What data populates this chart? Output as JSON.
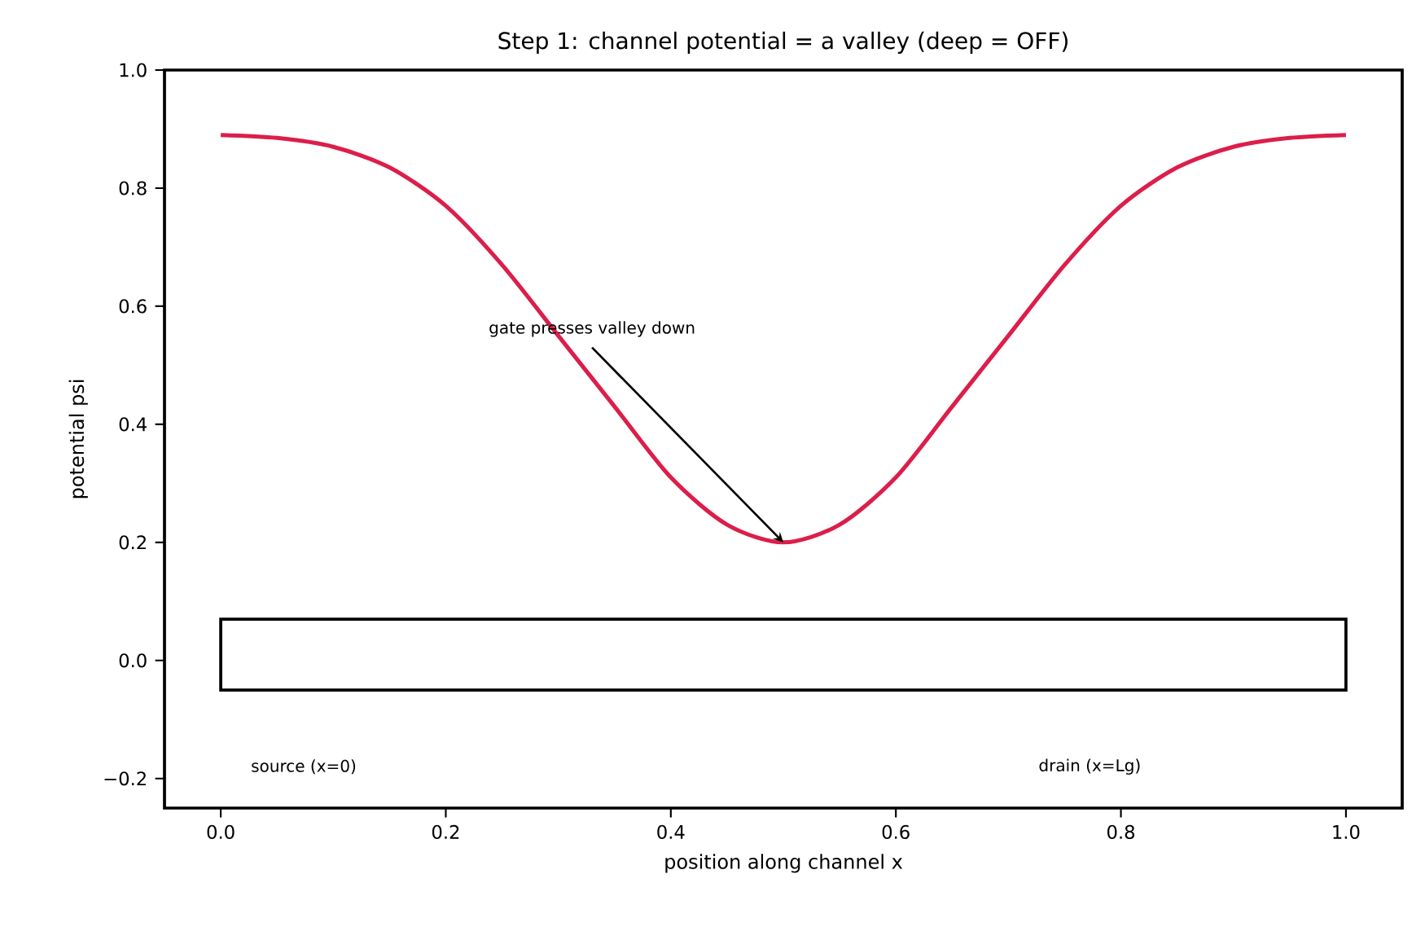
{
  "chart_data": {
    "type": "line",
    "title": "Step 1: channel potential = a valley (deep = OFF)",
    "xlabel": "position along channel  x",
    "ylabel": "potential  psi",
    "xlim": [
      -0.05,
      1.05
    ],
    "ylim": [
      -0.25,
      1.0
    ],
    "xticks": [
      {
        "value": 0,
        "label": "0.0"
      },
      {
        "value": 0.2,
        "label": "0.2"
      },
      {
        "value": 0.4,
        "label": "0.4"
      },
      {
        "value": 0.6,
        "label": "0.6"
      },
      {
        "value": 0.8,
        "label": "0.8"
      },
      {
        "value": 1,
        "label": "1.0"
      }
    ],
    "yticks": [
      {
        "value": -0.2,
        "label": "−0.2"
      },
      {
        "value": 0,
        "label": "0.0"
      },
      {
        "value": 0.2,
        "label": "0.2"
      },
      {
        "value": 0.4,
        "label": "0.4"
      },
      {
        "value": 0.6,
        "label": "0.6"
      },
      {
        "value": 0.8,
        "label": "0.8"
      },
      {
        "value": 1,
        "label": "1.0"
      }
    ],
    "grid": false,
    "marker": "none",
    "line_style": "solid",
    "series": [
      {
        "color": "#dc1e4a",
        "x": [
          0,
          0.05,
          0.1,
          0.15,
          0.2,
          0.25,
          0.3,
          0.35,
          0.4,
          0.45,
          0.5,
          0.55,
          0.6,
          0.65,
          0.7,
          0.75,
          0.8,
          0.85,
          0.9,
          0.95,
          1.0
        ],
        "values": [
          0.89,
          0.885,
          0.87,
          0.835,
          0.77,
          0.67,
          0.55,
          0.43,
          0.31,
          0.23,
          0.2,
          0.23,
          0.31,
          0.43,
          0.55,
          0.67,
          0.77,
          0.835,
          0.87,
          0.885,
          0.89
        ]
      }
    ],
    "annotations": [
      {
        "text": "gate presses valley down",
        "x": 0.5,
        "y": 0.2
      },
      "source (x=0)",
      "drain (x=Lg)"
    ]
  }
}
